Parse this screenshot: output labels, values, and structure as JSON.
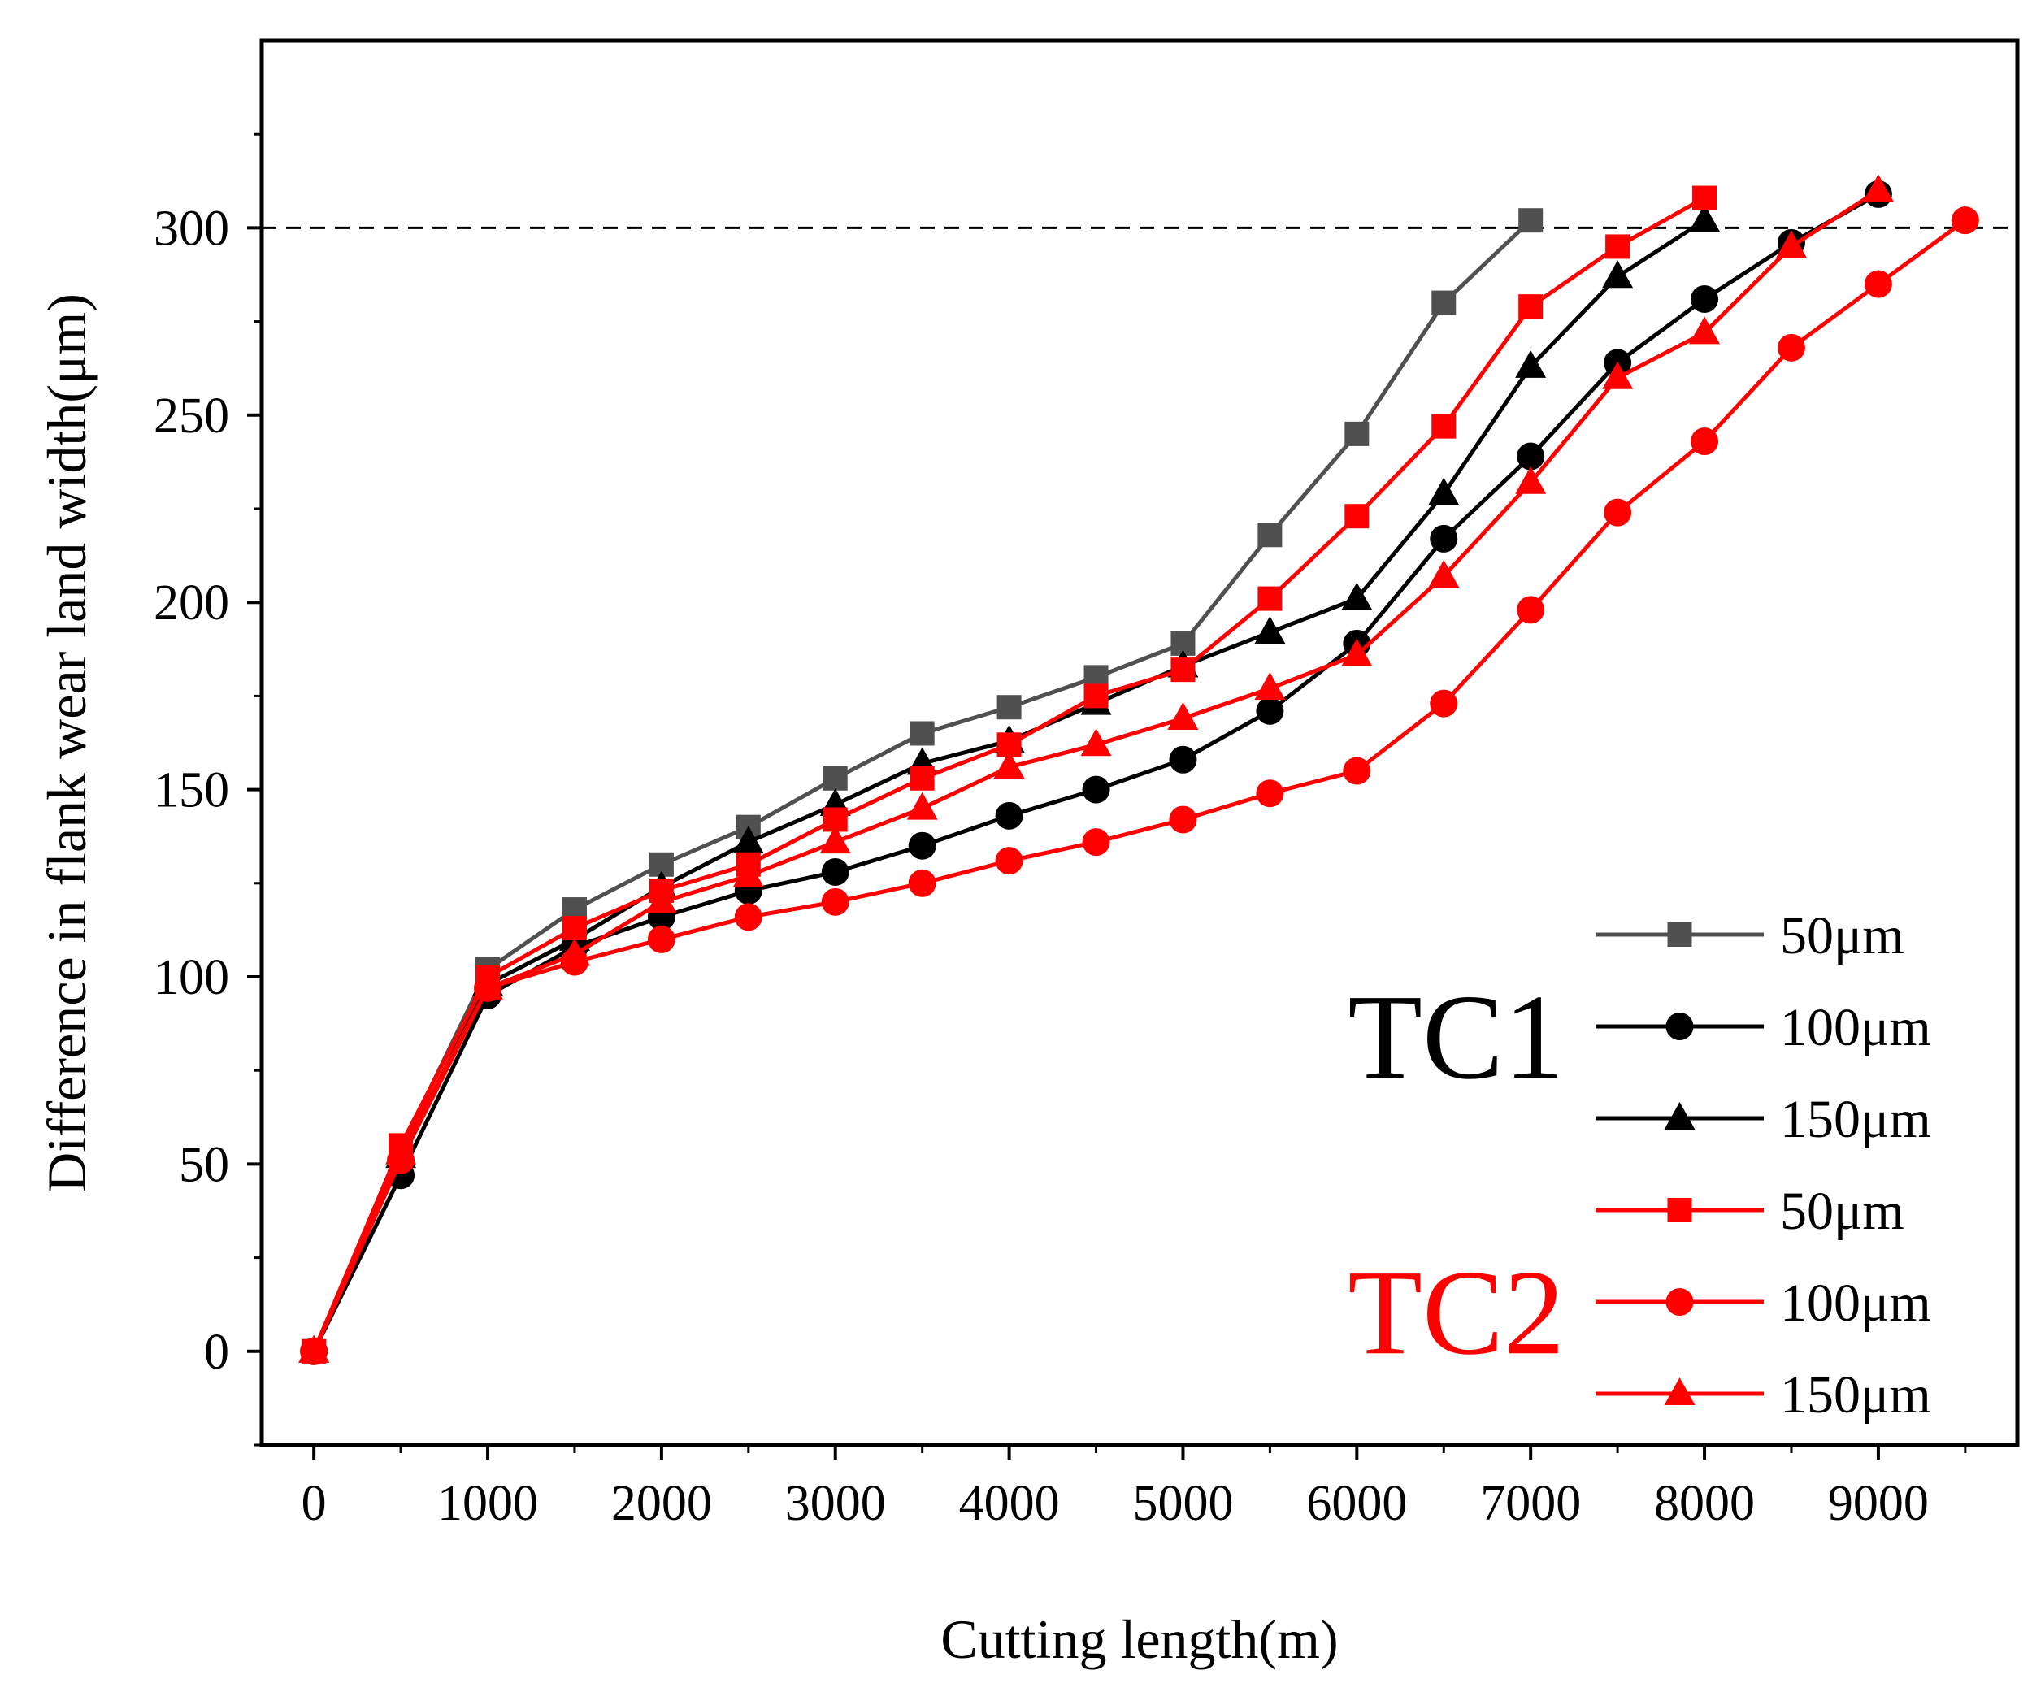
{
  "chart_data": {
    "type": "line",
    "xlabel": "Cutting length(m)",
    "ylabel": "Difference in flank wear land width(μm)",
    "xlim": [
      -300,
      9800
    ],
    "ylim": [
      -25,
      350
    ],
    "x_ticks": [
      0,
      1000,
      2000,
      3000,
      4000,
      5000,
      6000,
      7000,
      8000,
      9000
    ],
    "y_ticks": [
      0,
      50,
      100,
      150,
      200,
      250,
      300
    ],
    "reference_line": {
      "y": 300,
      "style": "dashed",
      "color": "#000000"
    },
    "grid": false,
    "legend_position": "bottom-right",
    "groups": [
      {
        "label": "TC1",
        "color": "#000000"
      },
      {
        "label": "TC2",
        "color": "#ff0000"
      }
    ],
    "series": [
      {
        "name": "50μm",
        "group": "TC1",
        "marker": "square",
        "color": "#505050",
        "x": [
          0,
          500,
          1000,
          1500,
          2000,
          2500,
          3000,
          3500,
          4000,
          4500,
          5000,
          5500,
          6000,
          6500,
          7000
        ],
        "y": [
          0,
          54,
          102,
          118,
          130,
          140,
          153,
          165,
          172,
          180,
          189,
          218,
          245,
          280,
          302
        ]
      },
      {
        "name": "100μm",
        "group": "TC1",
        "marker": "circle",
        "color": "#000000",
        "x": [
          0,
          500,
          1000,
          1500,
          2000,
          2500,
          3000,
          3500,
          4000,
          4500,
          5000,
          5500,
          6000,
          6500,
          7000,
          7500,
          8000,
          8500,
          9000
        ],
        "y": [
          0,
          47,
          95,
          108,
          116,
          123,
          128,
          135,
          143,
          150,
          158,
          171,
          189,
          217,
          239,
          264,
          281,
          296,
          309
        ]
      },
      {
        "name": "150μm",
        "group": "TC1",
        "marker": "triangle",
        "color": "#000000",
        "x": [
          0,
          500,
          1000,
          1500,
          2000,
          2500,
          3000,
          3500,
          4000,
          4500,
          5000,
          5500,
          6000,
          6500,
          7000,
          7500,
          8000
        ],
        "y": [
          0,
          52,
          98,
          110,
          124,
          136,
          146,
          157,
          163,
          173,
          183,
          192,
          201,
          229,
          263,
          287,
          302
        ]
      },
      {
        "name": "50μm",
        "group": "TC2",
        "marker": "square",
        "color": "#ff0000",
        "x": [
          0,
          500,
          1000,
          1500,
          2000,
          2500,
          3000,
          3500,
          4000,
          4500,
          5000,
          5500,
          6000,
          6500,
          7000,
          7500,
          8000
        ],
        "y": [
          0,
          55,
          100,
          113,
          123,
          130,
          142,
          153,
          162,
          175,
          182,
          201,
          223,
          247,
          279,
          295,
          308
        ]
      },
      {
        "name": "100μm",
        "group": "TC2",
        "marker": "circle",
        "color": "#ff0000",
        "x": [
          0,
          500,
          1000,
          1500,
          2000,
          2500,
          3000,
          3500,
          4000,
          4500,
          5000,
          5500,
          6000,
          6500,
          7000,
          7500,
          8000,
          8500,
          9000,
          9500
        ],
        "y": [
          0,
          51,
          97,
          104,
          110,
          116,
          120,
          125,
          131,
          136,
          142,
          149,
          155,
          173,
          198,
          224,
          243,
          268,
          285,
          302
        ]
      },
      {
        "name": "150μm",
        "group": "TC2",
        "marker": "triangle",
        "color": "#ff0000",
        "x": [
          0,
          500,
          1000,
          1500,
          2000,
          2500,
          3000,
          3500,
          4000,
          4500,
          5000,
          5500,
          6000,
          6500,
          7000,
          7500,
          8000,
          8500,
          9000
        ],
        "y": [
          0,
          53,
          97,
          106,
          120,
          127,
          136,
          145,
          156,
          162,
          169,
          177,
          186,
          207,
          232,
          260,
          272,
          295,
          310
        ]
      }
    ]
  }
}
